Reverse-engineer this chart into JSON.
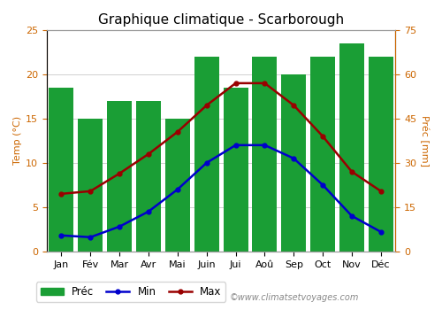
{
  "title": "Graphique climatique - Scarborough",
  "months": [
    "Jan",
    "Fév",
    "Mar",
    "Avr",
    "Mai",
    "Juin",
    "Jui",
    "Aoû",
    "Sep",
    "Oct",
    "Nov",
    "Déc"
  ],
  "prec": [
    18.5,
    15.0,
    17.0,
    17.0,
    15.0,
    22.0,
    18.5,
    22.0,
    20.0,
    22.0,
    23.5,
    22.0
  ],
  "temp_min": [
    1.8,
    1.6,
    2.8,
    4.5,
    7.0,
    10.0,
    12.0,
    12.0,
    10.5,
    7.5,
    4.0,
    2.2
  ],
  "temp_max": [
    6.5,
    6.8,
    8.8,
    11.0,
    13.5,
    16.5,
    19.0,
    19.0,
    16.5,
    13.0,
    9.0,
    6.8
  ],
  "bar_color": "#1a9e35",
  "line_min_color": "#0000cc",
  "line_max_color": "#990000",
  "ylabel_left": "Temp (°C)",
  "ylabel_right": "Préc [mm]",
  "ylim_left": [
    0,
    25
  ],
  "ylim_right": [
    0,
    75
  ],
  "yticks_left": [
    0,
    5,
    10,
    15,
    20,
    25
  ],
  "yticks_right": [
    0,
    15,
    30,
    45,
    60,
    75
  ],
  "watermark": "©www.climatsetvoyages.com",
  "bg_color": "#ffffff",
  "plot_bg_color": "#ffffff",
  "grid_color": "#d0d0d0",
  "title_fontsize": 11,
  "axis_fontsize": 8,
  "tick_fontsize": 8,
  "legend_fontsize": 8.5
}
